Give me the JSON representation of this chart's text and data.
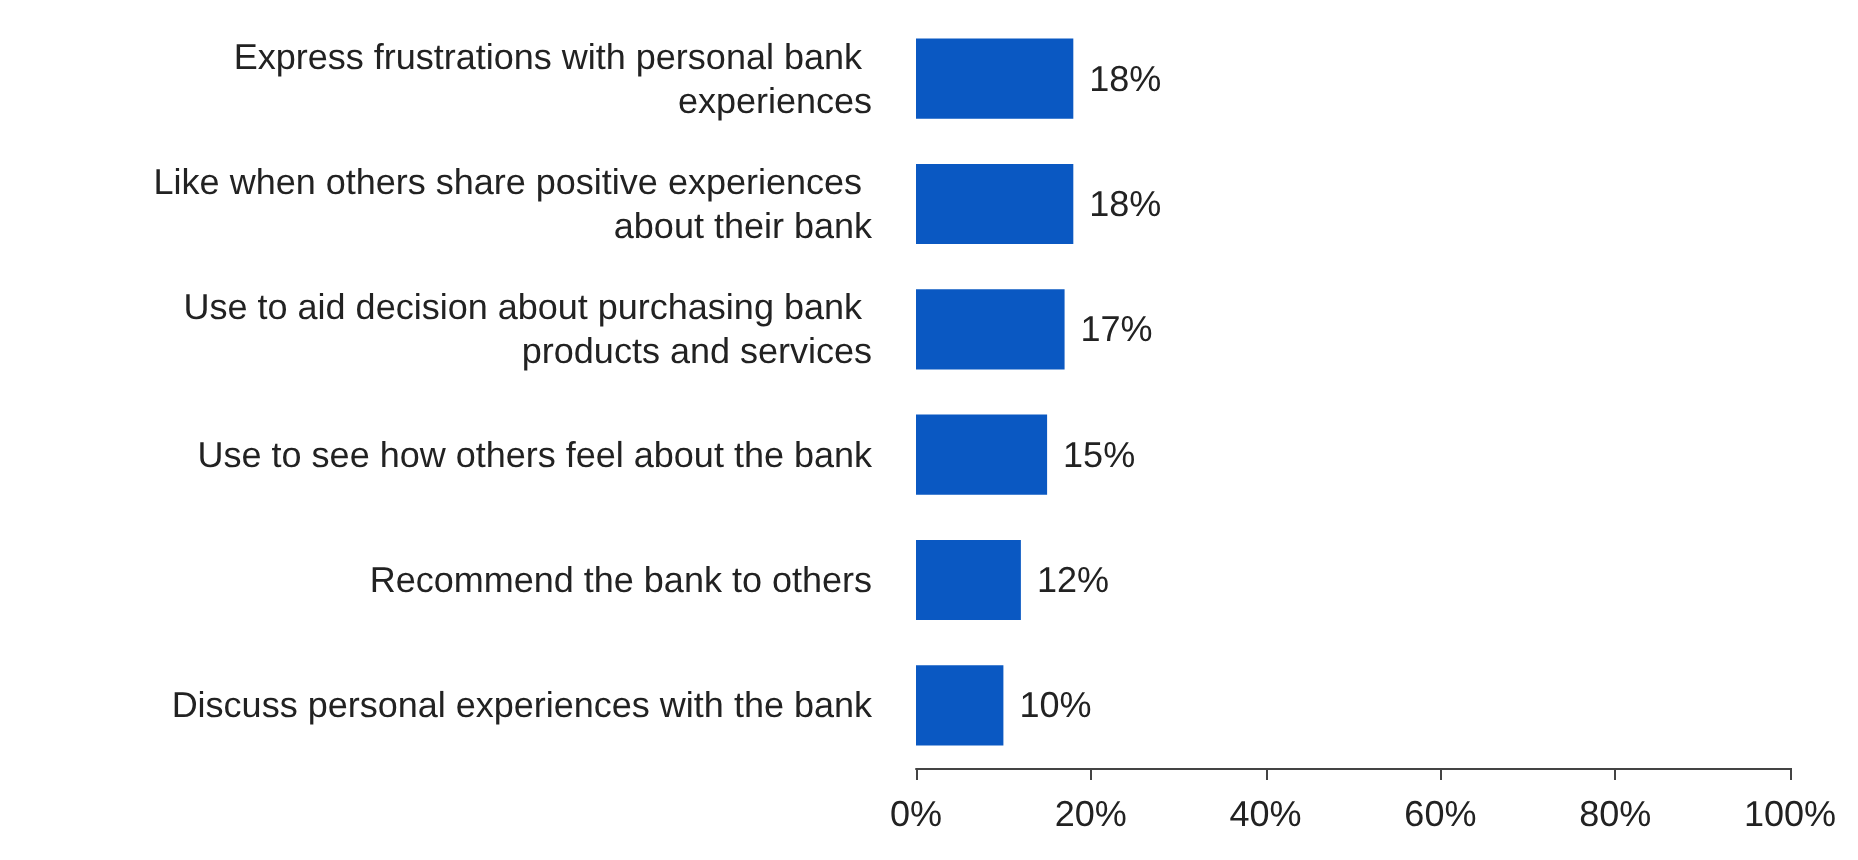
{
  "chart_data": {
    "type": "bar",
    "orientation": "horizontal",
    "categories": [
      "Express frustrations with personal bank experiences",
      "Like when others share positive experiences about their bank",
      "Use to aid decision about purchasing bank products and services",
      "Use to see how others feel about the bank",
      "Recommend the bank to others",
      "Discuss personal experiences with the bank"
    ],
    "values": [
      18,
      18,
      17,
      15,
      12,
      10
    ],
    "value_labels": [
      "18%",
      "18%",
      "17%",
      "15%",
      "12%",
      "10%"
    ],
    "color": "#0a58c2",
    "xlim": [
      0,
      100
    ],
    "xticks": [
      {
        "value": 0,
        "label": "0%"
      },
      {
        "value": 20,
        "label": "20%"
      },
      {
        "value": 40,
        "label": "40%"
      },
      {
        "value": 60,
        "label": "60%"
      },
      {
        "value": 80,
        "label": "80%"
      },
      {
        "value": 100,
        "label": "100%"
      }
    ],
    "grid": false
  }
}
